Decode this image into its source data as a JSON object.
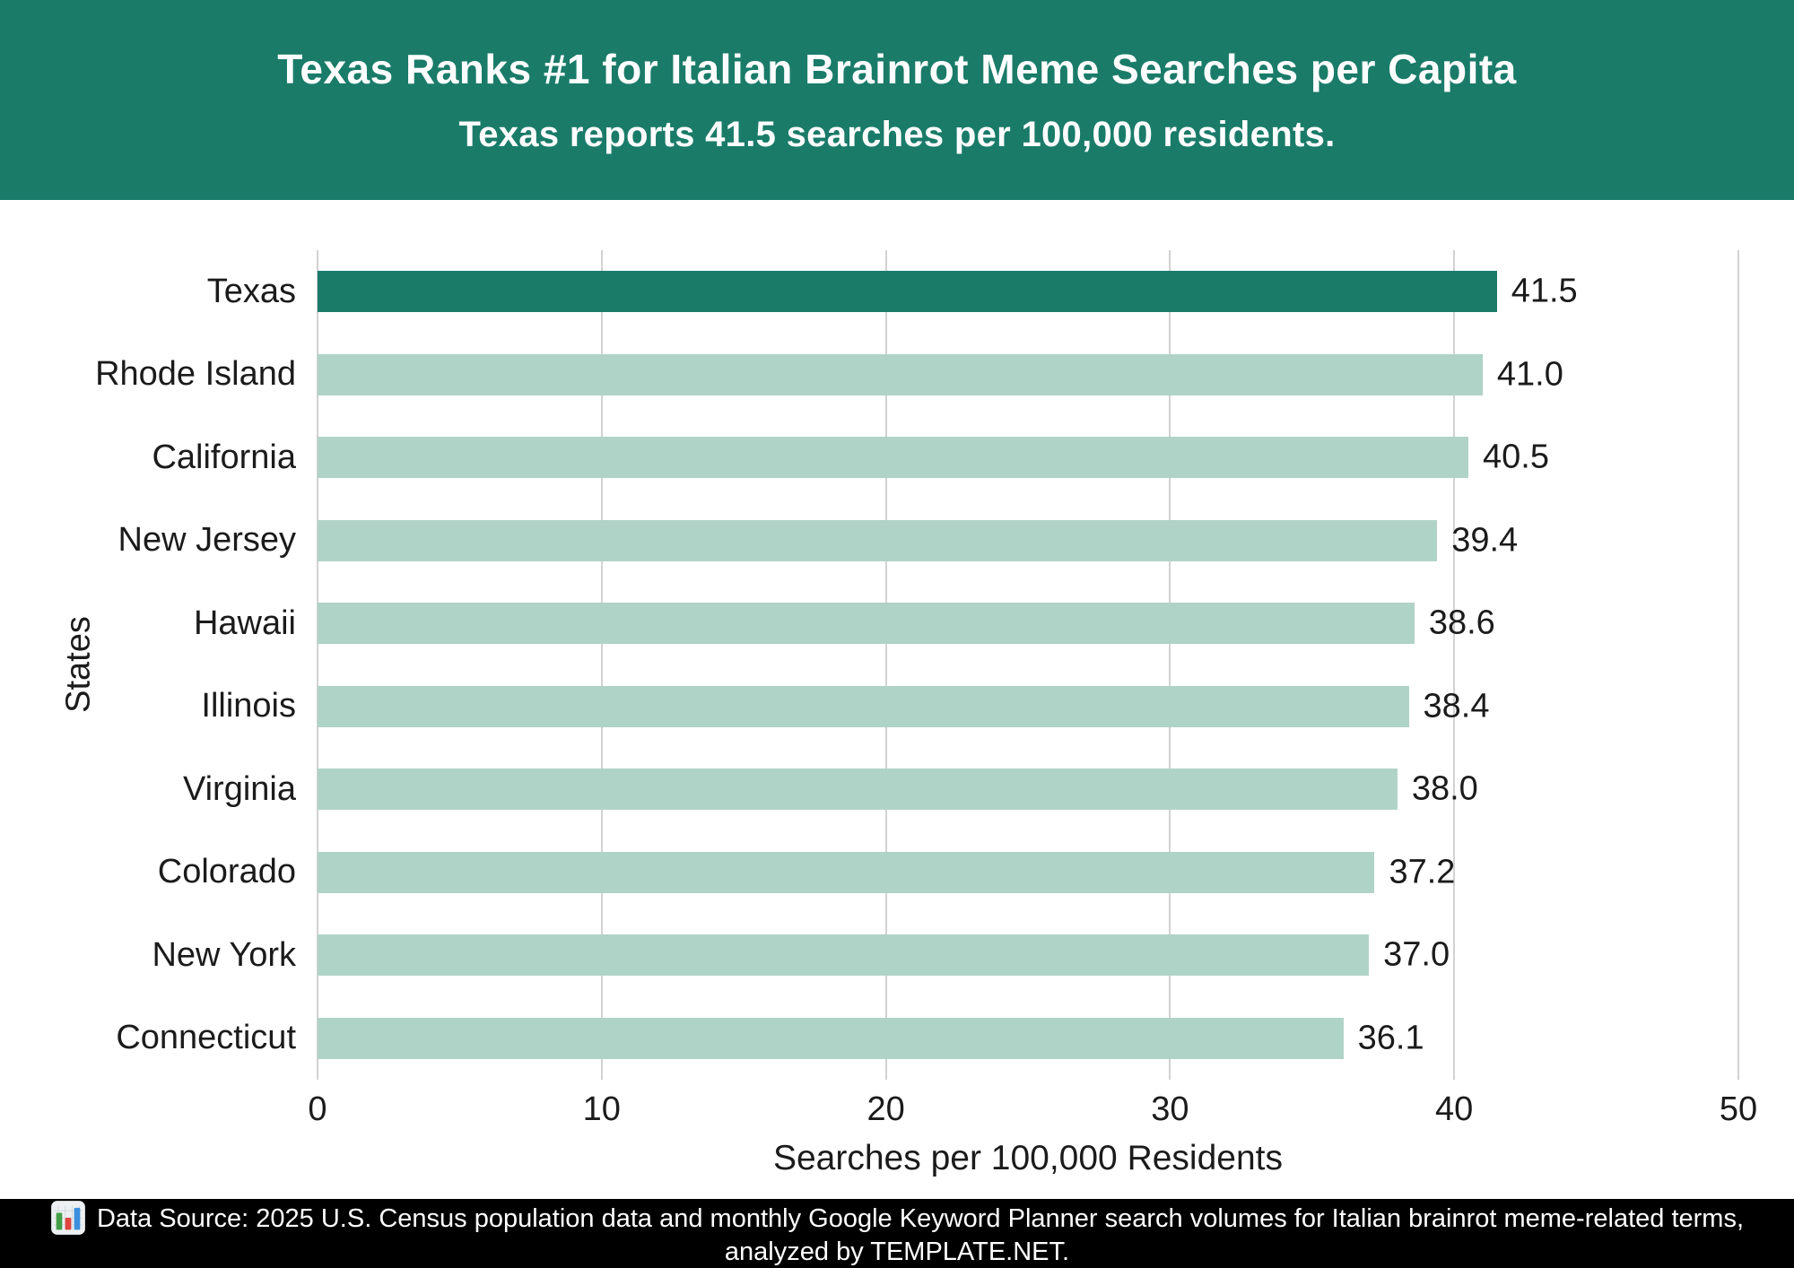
{
  "header": {
    "title": "Texas Ranks #1 for Italian Brainrot Meme Searches per Capita",
    "subtitle": "Texas reports 41.5 searches per 100,000 residents."
  },
  "chart_data": {
    "type": "bar",
    "orientation": "horizontal",
    "title": "Texas Ranks #1 for Italian Brainrot Meme Searches per Capita",
    "subtitle": "Texas reports 41.5 searches per 100,000 residents.",
    "xlabel": "Searches per 100,000 Residents",
    "ylabel": "States",
    "xlim": [
      0,
      50
    ],
    "xticks": [
      "0",
      "10",
      "20",
      "30",
      "40",
      "50"
    ],
    "grid": true,
    "legend_position": "none",
    "categories": [
      "Texas",
      "Rhode Island",
      "California",
      "New Jersey",
      "Hawaii",
      "Illinois",
      "Virginia",
      "Colorado",
      "New York",
      "Connecticut"
    ],
    "values": [
      41.5,
      41.0,
      40.5,
      39.4,
      38.6,
      38.4,
      38.0,
      37.2,
      37.0,
      36.1
    ],
    "value_labels": [
      "41.5",
      "41.0",
      "40.5",
      "39.4",
      "38.6",
      "38.4",
      "38.0",
      "37.2",
      "37.0",
      "36.1"
    ],
    "highlight_index": 0
  },
  "colors": {
    "header_background": "#1A7B69",
    "bar_highlight": "#1A7B69",
    "bar_default": "#B0D3C7",
    "gridline": "#D2D2D2",
    "footer_background": "#000000",
    "text_dark": "#1B1B1B",
    "text_light": "#FFFFFF"
  },
  "footer": {
    "icon": "bar-chart-icon",
    "line1": "Data Source: 2025 U.S. Census population data and monthly Google Keyword Planner search volumes for Italian brainrot meme-related terms,",
    "line2": "analyzed by TEMPLATE.NET."
  }
}
